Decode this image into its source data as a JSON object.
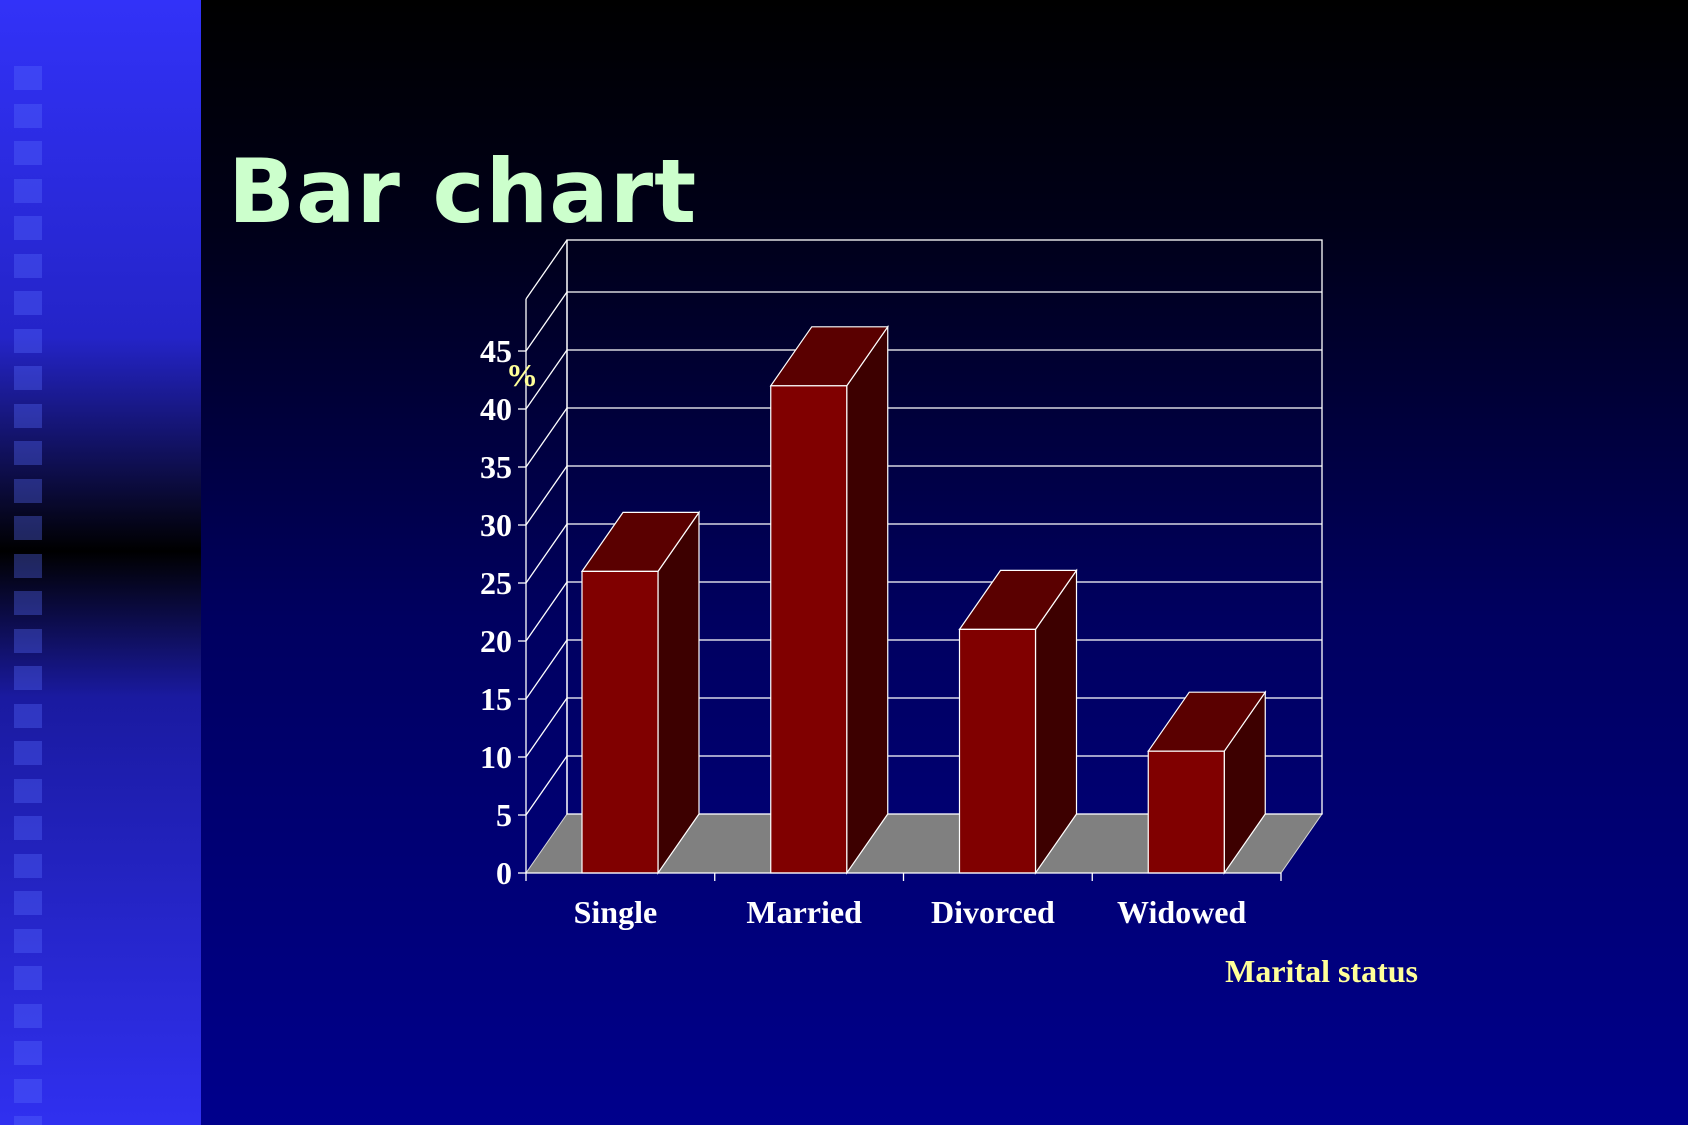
{
  "slide": {
    "title": "Bar chart"
  },
  "chart_data": {
    "type": "bar",
    "style": "3d",
    "categories": [
      "Single",
      "Married",
      "Divorced",
      "Widowed"
    ],
    "values": [
      26,
      42,
      21,
      10.5
    ],
    "ylabel": "%",
    "xlabel": "Marital status",
    "ylim": [
      0,
      45
    ],
    "yticks": [
      0,
      5,
      10,
      15,
      20,
      25,
      30,
      35,
      40,
      45
    ],
    "grid": true,
    "colors": {
      "bar_front": "#800000",
      "bar_top": "#5a0000",
      "bar_side": "#3d0000",
      "floor": "#808080",
      "grid": "#ffffff"
    }
  }
}
